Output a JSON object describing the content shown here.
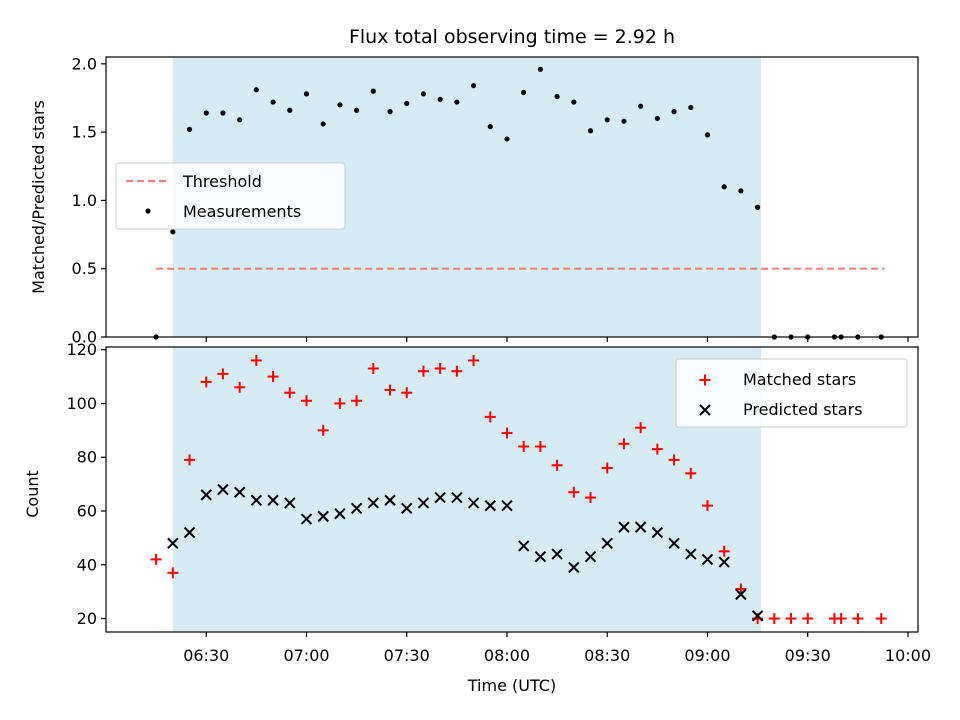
{
  "chart_data": [
    {
      "type": "scatter",
      "title": "Flux total observing time = 2.92 h",
      "ylabel": "Matched/Predicted stars",
      "xlabel": "",
      "xlim": [
        "06:00",
        "10:03"
      ],
      "ylim": [
        0,
        2.05
      ],
      "yticks": [
        0.0,
        0.5,
        1.0,
        1.5,
        2.0
      ],
      "ytick_labels": [
        "0.0",
        "0.5",
        "1.0",
        "1.5",
        "2.0"
      ],
      "shaded_span": [
        "06:20",
        "09:16"
      ],
      "shaded_color": "#add8e6",
      "threshold": {
        "name": "Threshold",
        "value": 0.5,
        "x_range": [
          "06:15",
          "09:53"
        ],
        "color": "#f08080"
      },
      "series": [
        {
          "name": "Measurements",
          "color": "#000000",
          "marker": "dot",
          "x": [
            "06:15",
            "06:20",
            "06:25",
            "06:30",
            "06:35",
            "06:40",
            "06:45",
            "06:50",
            "06:55",
            "07:00",
            "07:05",
            "07:10",
            "07:15",
            "07:20",
            "07:25",
            "07:30",
            "07:35",
            "07:40",
            "07:45",
            "07:50",
            "07:55",
            "08:00",
            "08:05",
            "08:10",
            "08:15",
            "08:20",
            "08:25",
            "08:30",
            "08:35",
            "08:40",
            "08:45",
            "08:50",
            "08:55",
            "09:00",
            "09:05",
            "09:10",
            "09:15",
            "09:20",
            "09:25",
            "09:30",
            "09:38",
            "09:40",
            "09:45",
            "09:52"
          ],
          "y": [
            0.0,
            0.77,
            1.52,
            1.64,
            1.64,
            1.59,
            1.81,
            1.72,
            1.66,
            1.78,
            1.56,
            1.7,
            1.66,
            1.8,
            1.65,
            1.71,
            1.78,
            1.74,
            1.72,
            1.84,
            1.54,
            1.45,
            1.79,
            1.96,
            1.76,
            1.72,
            1.51,
            1.59,
            1.58,
            1.69,
            1.6,
            1.65,
            1.68,
            1.48,
            1.1,
            1.07,
            0.95,
            0.0,
            0.0,
            0.0,
            0.0,
            0.0,
            0.0,
            0.0
          ]
        }
      ],
      "legend": "center-left"
    },
    {
      "type": "scatter",
      "title": "",
      "xlabel": "Time (UTC)",
      "ylabel": "Count",
      "xlim": [
        "06:00",
        "10:03"
      ],
      "ylim": [
        15,
        121
      ],
      "xticks": [
        "06:30",
        "07:00",
        "07:30",
        "08:00",
        "08:30",
        "09:00",
        "09:30",
        "10:00"
      ],
      "yticks": [
        20,
        40,
        60,
        80,
        100,
        120
      ],
      "ytick_labels": [
        "20",
        "40",
        "60",
        "80",
        "100",
        "120"
      ],
      "shaded_span": [
        "06:20",
        "09:16"
      ],
      "shaded_color": "#add8e6",
      "series": [
        {
          "name": "Matched stars",
          "color": "#ff0000",
          "marker": "plus",
          "x": [
            "06:15",
            "06:20",
            "06:25",
            "06:30",
            "06:35",
            "06:40",
            "06:45",
            "06:50",
            "06:55",
            "07:00",
            "07:05",
            "07:10",
            "07:15",
            "07:20",
            "07:25",
            "07:30",
            "07:35",
            "07:40",
            "07:45",
            "07:50",
            "07:55",
            "08:00",
            "08:05",
            "08:10",
            "08:15",
            "08:20",
            "08:25",
            "08:30",
            "08:35",
            "08:40",
            "08:45",
            "08:50",
            "08:55",
            "09:00",
            "09:05",
            "09:10",
            "09:15",
            "09:20",
            "09:25",
            "09:30",
            "09:38",
            "09:40",
            "09:45",
            "09:52"
          ],
          "y": [
            42,
            37,
            79,
            108,
            111,
            106,
            116,
            110,
            104,
            101,
            90,
            100,
            101,
            113,
            105,
            104,
            112,
            113,
            112,
            116,
            95,
            89,
            84,
            84,
            77,
            67,
            65,
            76,
            85,
            91,
            83,
            79,
            74,
            62,
            45,
            31,
            20,
            20,
            20,
            20,
            20,
            20,
            20,
            20
          ]
        },
        {
          "name": "Predicted stars",
          "color": "#000000",
          "marker": "x",
          "x": [
            "06:20",
            "06:25",
            "06:30",
            "06:35",
            "06:40",
            "06:45",
            "06:50",
            "06:55",
            "07:00",
            "07:05",
            "07:10",
            "07:15",
            "07:20",
            "07:25",
            "07:30",
            "07:35",
            "07:40",
            "07:45",
            "07:50",
            "07:55",
            "08:00",
            "08:05",
            "08:10",
            "08:15",
            "08:20",
            "08:25",
            "08:30",
            "08:35",
            "08:40",
            "08:45",
            "08:50",
            "08:55",
            "09:00",
            "09:05",
            "09:10",
            "09:15"
          ],
          "y": [
            48,
            52,
            66,
            68,
            67,
            64,
            64,
            63,
            57,
            58,
            59,
            61,
            63,
            64,
            61,
            63,
            65,
            65,
            63,
            62,
            62,
            47,
            43,
            44,
            39,
            43,
            48,
            54,
            54,
            52,
            48,
            44,
            42,
            41,
            29,
            21
          ]
        }
      ],
      "legend": "top-right"
    }
  ]
}
